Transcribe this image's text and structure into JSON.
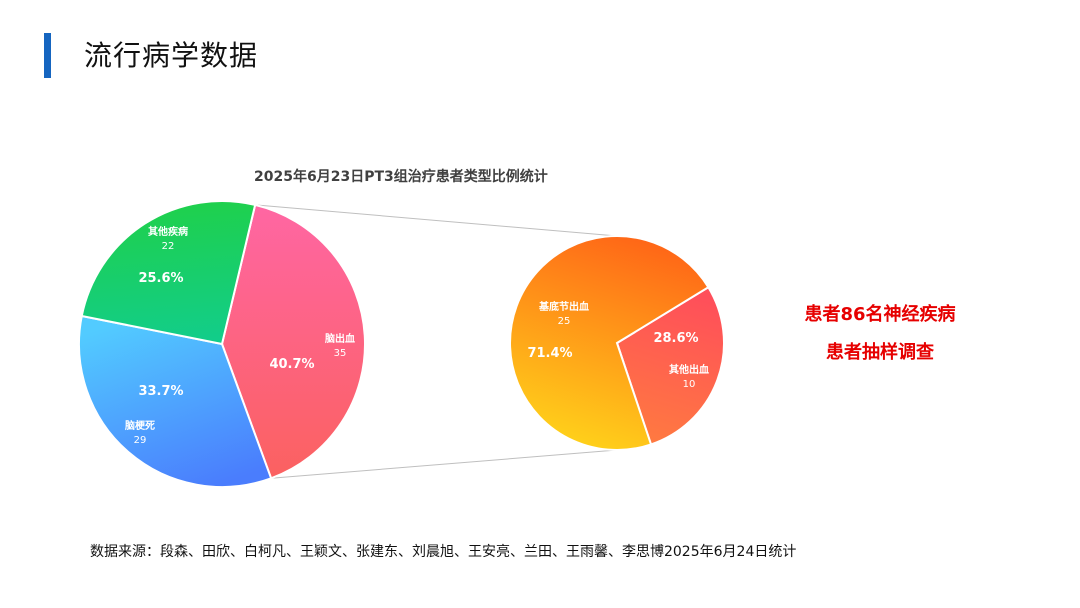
{
  "page": {
    "title": "流行病学数据",
    "note_line1": "患者86名神经疾病",
    "note_line2": "患者抽样调查",
    "source": "数据来源：段森、田欣、白柯凡、王颖文、张建东、刘晨旭、王安亮、兰田、王雨馨、李思博2025年6月24日统计"
  },
  "colors": {
    "accent": "#1565c0",
    "note": "#e60000"
  },
  "chart_data": {
    "type": "pie",
    "title": "2025年6月23日PT3组治疗患者类型比例统计",
    "main_pie": {
      "slices": [
        {
          "name": "脑出血",
          "value": 35,
          "percent": "40.7%",
          "color_start": "#ff66a3",
          "color_end": "#fb6160"
        },
        {
          "name": "脑梗死",
          "value": 29,
          "percent": "33.7%",
          "color_start": "#52cbff",
          "color_end": "#4a7dfd"
        },
        {
          "name": "其他疾病",
          "value": 22,
          "percent": "25.6%",
          "color_start": "#1fd04a",
          "color_end": "#12cd8a"
        }
      ]
    },
    "sub_pie": {
      "slices": [
        {
          "name": "其他出血",
          "value": 10,
          "percent": "28.6%",
          "color_start": "#ff4f5a",
          "color_end": "#ff7a40"
        },
        {
          "name": "基底节出血",
          "value": 25,
          "percent": "71.4%",
          "color_start": "#ff6417",
          "color_end": "#ffd11a"
        }
      ]
    }
  }
}
